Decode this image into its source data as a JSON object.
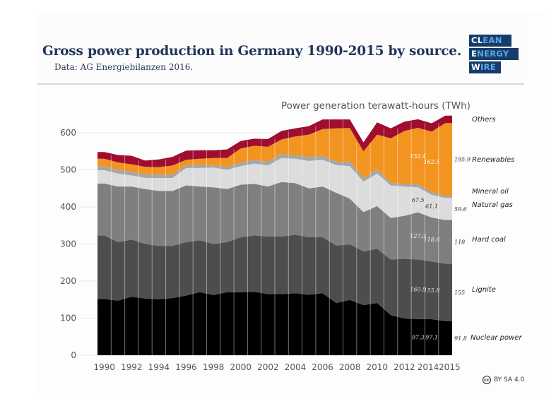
{
  "header": {
    "title": "Gross power production in Germany 1990-2015 by source.",
    "subtitle": "Data: AG Energiebilanzen 2016."
  },
  "logo": {
    "rows": [
      {
        "white": "CL",
        "blue": "EAN"
      },
      {
        "white": "E",
        "blue": "NERGY"
      },
      {
        "white": "W",
        "blue": "IRE"
      }
    ],
    "colors": {
      "background": "#163c6b",
      "accent": "#5aa8e6",
      "white": "#ffffff"
    }
  },
  "license": {
    "icon": "cc-icon",
    "icon_text": "cc",
    "label": "BY SA 4.0"
  },
  "chart_data": {
    "type": "area",
    "stacked": true,
    "title": "Power generation terawatt-hours (TWh)",
    "xlabel": "",
    "ylabel": "",
    "ylim": [
      0,
      650
    ],
    "yticks": [
      0,
      100,
      200,
      300,
      400,
      500,
      600
    ],
    "xticks": [
      1990,
      1992,
      1994,
      1996,
      1998,
      2000,
      2002,
      2004,
      2006,
      2008,
      2010,
      2012,
      2014,
      2015
    ],
    "grid": "horizontal",
    "legend": "right",
    "x": [
      1990,
      1991,
      1992,
      1993,
      1994,
      1995,
      1996,
      1997,
      1998,
      1999,
      2000,
      2001,
      2002,
      2003,
      2004,
      2005,
      2006,
      2007,
      2008,
      2009,
      2010,
      2011,
      2012,
      2013,
      2014,
      2015
    ],
    "series": [
      {
        "name": "Nuclear power",
        "color": "#000000",
        "label_color": "#dddddd",
        "values": [
          152,
          147,
          158,
          153,
          151,
          154,
          161,
          170,
          162,
          170,
          170,
          171,
          165,
          165,
          167,
          163,
          167,
          141,
          149,
          135,
          141,
          108,
          99,
          97.3,
          97.1,
          91.8
        ]
      },
      {
        "name": "Lignite",
        "color": "#4d4d4d",
        "label_color": "#dddddd",
        "values": [
          171,
          158,
          154,
          147,
          144,
          141,
          144,
          140,
          138,
          135,
          148,
          152,
          155,
          155,
          158,
          155,
          151,
          155,
          150,
          145,
          146,
          150,
          161,
          160.9,
          155.8,
          155
        ]
      },
      {
        "name": "Hard coal",
        "color": "#7f7f7f",
        "label_color": "#eeeeee",
        "values": [
          140,
          150,
          143,
          148,
          148,
          148,
          153,
          145,
          153,
          143,
          142,
          139,
          135,
          147,
          139,
          132,
          137,
          142,
          123,
          106,
          115,
          112,
          116,
          127.3,
          118.6,
          118
        ]
      },
      {
        "name": "Natural gas",
        "color": "#dcdcdc",
        "label_color": "#333333",
        "values": [
          36,
          35,
          30,
          30,
          35,
          35,
          47,
          50,
          53,
          52,
          50,
          55,
          57,
          65,
          66,
          74,
          72,
          75,
          88,
          82,
          88,
          88,
          79,
          67.5,
          61.1,
          59.6
        ]
      },
      {
        "name": "Mineral oil",
        "color": "#a6a6a6",
        "label_color": "#333333",
        "values": [
          11,
          10,
          10,
          10,
          9,
          9,
          8,
          8,
          7,
          8,
          10,
          10,
          10,
          10,
          10,
          11,
          11,
          9,
          12,
          10,
          12,
          7,
          7,
          8,
          8,
          6
        ]
      },
      {
        "name": "Renewables",
        "color": "#f39420",
        "label_color": "#ffffff",
        "values": [
          20,
          20,
          20,
          20,
          20,
          25,
          14,
          17,
          19,
          24,
          38,
          38,
          40,
          40,
          50,
          60,
          72,
          90,
          91,
          72,
          93,
          120,
          143,
          152.4,
          162.5,
          195.9
        ]
      },
      {
        "name": "Others",
        "color": "#a00d2e",
        "label_color": "#ffffff",
        "values": [
          18,
          20,
          23,
          17,
          21,
          23,
          25,
          23,
          21,
          23,
          20,
          19,
          21,
          23,
          22,
          23,
          26,
          24,
          23,
          24,
          33,
          27,
          25,
          23,
          22.5,
          19.7
        ]
      }
    ],
    "value_labels": [
      {
        "series": "Nuclear power",
        "years": [
          2013,
          2014,
          2015
        ],
        "text": [
          "97.3",
          "97.1",
          "91.8"
        ]
      },
      {
        "series": "Lignite",
        "years": [
          2013,
          2014,
          2015
        ],
        "text": [
          "160.9",
          "155.8",
          "155"
        ]
      },
      {
        "series": "Hard coal",
        "years": [
          2013,
          2014,
          2015
        ],
        "text": [
          "127.3",
          "118.6",
          "118"
        ]
      },
      {
        "series": "Natural gas",
        "years": [
          2013,
          2014,
          2015
        ],
        "text": [
          "67.5",
          "61.1",
          "59.6"
        ]
      },
      {
        "series": "Renewables",
        "years": [
          2013,
          2014,
          2015
        ],
        "text": [
          "152.4",
          "162.5",
          "195.9"
        ]
      }
    ],
    "legend_entries": [
      "Others",
      "Renewables",
      "Mineral oil",
      "Natural gas",
      "Hard coal",
      "Lignite",
      "Nuclear power"
    ]
  }
}
